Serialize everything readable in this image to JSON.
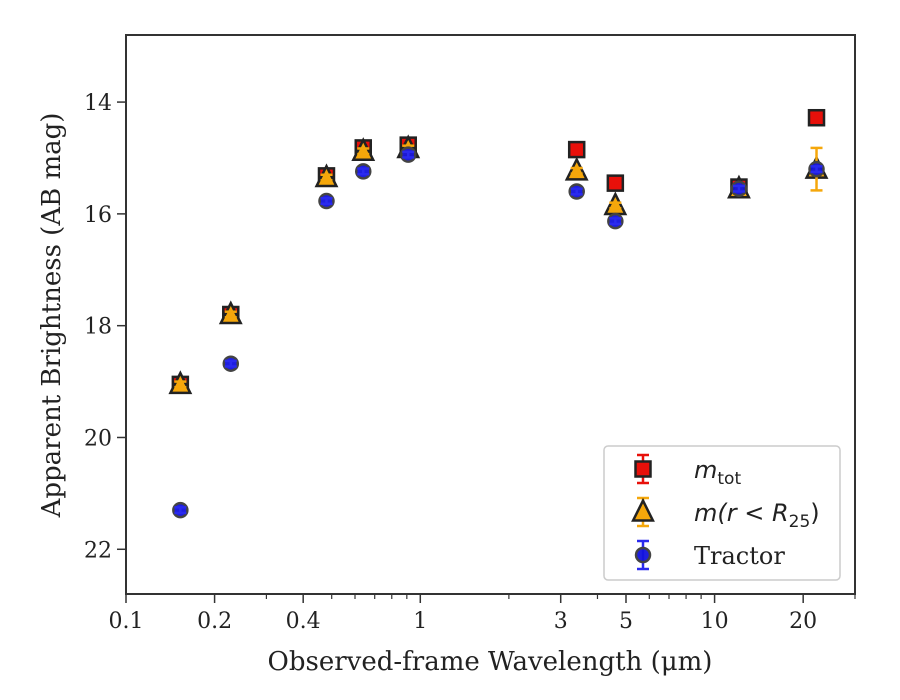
{
  "chart_data": {
    "type": "scatter",
    "xlabel": "Observed-frame Wavelength (μm)",
    "ylabel": "Apparent Brightness (AB mag)",
    "x_scale": "log",
    "xlim": [
      0.1,
      30
    ],
    "ylim": [
      22.8,
      12.8
    ],
    "y_inverted": true,
    "grid": false,
    "legend_position": "lower-right",
    "x_ticks": [
      {
        "value": 0.1,
        "label": "0.1"
      },
      {
        "value": 0.2,
        "label": "0.2"
      },
      {
        "value": 0.4,
        "label": "0.4"
      },
      {
        "value": 1,
        "label": "1"
      },
      {
        "value": 3,
        "label": "3"
      },
      {
        "value": 5,
        "label": "5"
      },
      {
        "value": 10,
        "label": "10"
      },
      {
        "value": 20,
        "label": "20"
      }
    ],
    "y_ticks": [
      {
        "value": 14,
        "label": "14"
      },
      {
        "value": 16,
        "label": "16"
      },
      {
        "value": 18,
        "label": "18"
      },
      {
        "value": 20,
        "label": "20"
      },
      {
        "value": 22,
        "label": "22"
      }
    ],
    "series": [
      {
        "name": "m_tot",
        "legend_main": "m",
        "legend_sub": "tot",
        "marker": "square",
        "color": "#e8100a",
        "errcolor": "#e8100a",
        "points": [
          {
            "x": 0.153,
            "y": 19.05,
            "err": 0.05
          },
          {
            "x": 0.227,
            "y": 17.8,
            "err": 0.05
          },
          {
            "x": 0.48,
            "y": 15.32,
            "err": 0.05
          },
          {
            "x": 0.64,
            "y": 14.82,
            "err": 0.05
          },
          {
            "x": 0.91,
            "y": 14.77,
            "err": 0.05
          },
          {
            "x": 3.4,
            "y": 14.85,
            "err": 0.05
          },
          {
            "x": 4.6,
            "y": 15.45,
            "err": 0.05
          },
          {
            "x": 12.1,
            "y": 15.52,
            "err": 0.05
          },
          {
            "x": 22.2,
            "y": 14.28,
            "err": 0.05
          }
        ]
      },
      {
        "name": "m(r < R25)",
        "legend_main": "m(r < R",
        "legend_sub": "25",
        "legend_tail": ")",
        "marker": "triangle",
        "color": "#f5a70b",
        "errcolor": "#f5a70b",
        "points": [
          {
            "x": 0.153,
            "y": 19.05,
            "err": 0.05
          },
          {
            "x": 0.227,
            "y": 17.8,
            "err": 0.05
          },
          {
            "x": 0.48,
            "y": 15.35,
            "err": 0.05
          },
          {
            "x": 0.64,
            "y": 14.88,
            "err": 0.05
          },
          {
            "x": 0.91,
            "y": 14.83,
            "err": 0.05
          },
          {
            "x": 3.4,
            "y": 15.23,
            "err": 0.05
          },
          {
            "x": 4.6,
            "y": 15.85,
            "err": 0.05
          },
          {
            "x": 12.1,
            "y": 15.55,
            "err": 0.05
          },
          {
            "x": 22.2,
            "y": 15.2,
            "err": 0.38
          }
        ]
      },
      {
        "name": "Tractor",
        "legend_main": "Tractor",
        "marker": "circle",
        "color": "#1212dd",
        "errcolor": "#2a2aee",
        "points": [
          {
            "x": 0.153,
            "y": 21.3,
            "err": 0.05
          },
          {
            "x": 0.227,
            "y": 18.68,
            "err": 0.05
          },
          {
            "x": 0.48,
            "y": 15.77,
            "err": 0.05
          },
          {
            "x": 0.64,
            "y": 15.24,
            "err": 0.05
          },
          {
            "x": 0.91,
            "y": 14.94,
            "err": 0.05
          },
          {
            "x": 3.4,
            "y": 15.6,
            "err": 0.05
          },
          {
            "x": 4.6,
            "y": 16.13,
            "err": 0.05
          },
          {
            "x": 12.1,
            "y": 15.55,
            "err": 0.05
          },
          {
            "x": 22.2,
            "y": 15.2,
            "err": 0.05
          }
        ]
      }
    ]
  }
}
